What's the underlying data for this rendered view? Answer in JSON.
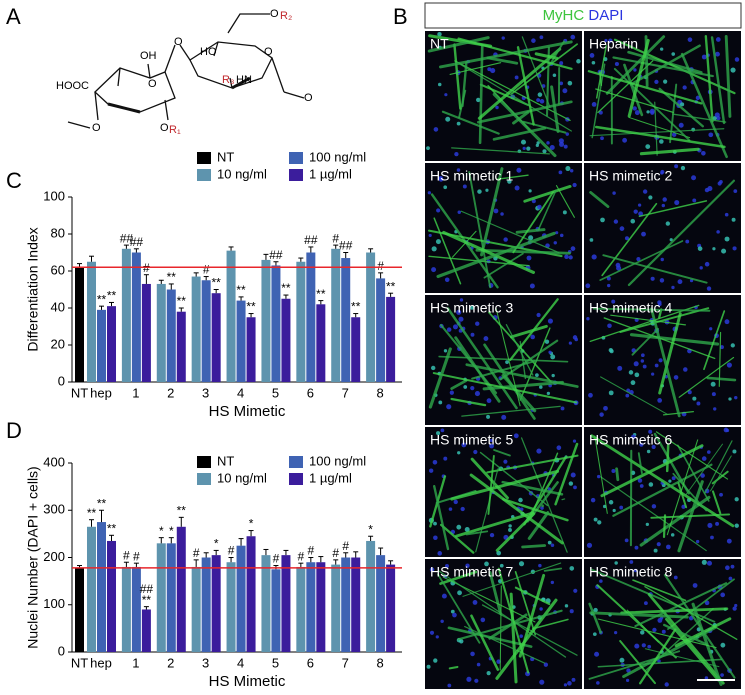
{
  "panel_letters": [
    "A",
    "B",
    "C",
    "D"
  ],
  "structure": {
    "labels": [
      "O",
      "R₂",
      "OH",
      "O",
      "HO",
      "O",
      "HOOC",
      "O",
      "R₃",
      "HN",
      "O",
      "R₁",
      "O",
      "O"
    ]
  },
  "micrographs": {
    "header": {
      "marker": "MyHC",
      "stain": "DAPI"
    },
    "panels": [
      "NT",
      "Heparin",
      "HS mimetic 1",
      "HS mimetic 2",
      "HS mimetic 3",
      "HS mimetic 4",
      "HS mimetic 5",
      "HS mimetic 6",
      "HS mimetic 7",
      "HS mimetic 8"
    ]
  },
  "chart_data": [
    {
      "type": "bar",
      "ylabel": "Differentiation Index",
      "xlabel": "HS Mimetic",
      "categories": [
        "NT",
        "hep",
        "1",
        "2",
        "3",
        "4",
        "5",
        "6",
        "7",
        "8"
      ],
      "ylim": [
        0,
        100
      ],
      "yticks": [
        0,
        20,
        40,
        60,
        80,
        100
      ],
      "reference_line": {
        "value": 62,
        "color": "#e8262b"
      },
      "series": [
        {
          "name": "NT",
          "color": "#000000",
          "values": [
            62,
            null,
            null,
            null,
            null,
            null,
            null,
            null,
            null,
            null
          ],
          "errors": [
            2,
            null,
            null,
            null,
            null,
            null,
            null,
            null,
            null,
            null
          ]
        },
        {
          "name": "10 ng/ml",
          "color": "#5e94ae",
          "values": [
            null,
            65,
            72,
            53,
            57,
            71,
            66,
            65,
            72,
            70
          ],
          "errors": [
            null,
            3,
            2,
            2,
            2,
            2,
            3,
            2,
            2,
            2
          ],
          "annotations": [
            null,
            null,
            "##",
            null,
            null,
            null,
            null,
            null,
            "#",
            null
          ]
        },
        {
          "name": "100 ng/ml",
          "color": "#3f63b3",
          "values": [
            null,
            39,
            70,
            50,
            55,
            44,
            63,
            70,
            67,
            56
          ],
          "errors": [
            null,
            2,
            2,
            3,
            2,
            2,
            2,
            3,
            3,
            3
          ],
          "annotations": [
            null,
            "**",
            "##",
            "**",
            "#",
            "**",
            "##",
            "##",
            "##",
            "#"
          ]
        },
        {
          "name": "1 µg/ml",
          "color": "#3b1d9c",
          "values": [
            null,
            41,
            53,
            38,
            48,
            35,
            45,
            42,
            35,
            46
          ],
          "errors": [
            null,
            2,
            5,
            2,
            2,
            2,
            2,
            2,
            2,
            2
          ],
          "annotations": [
            null,
            "**",
            "#",
            "**",
            "**",
            "**",
            "**",
            "**",
            "**",
            "**"
          ]
        }
      ]
    },
    {
      "type": "bar",
      "ylabel": "Nuclei Number (DAPI + cells)",
      "xlabel": "HS Mimetic",
      "categories": [
        "NT",
        "hep",
        "1",
        "2",
        "3",
        "4",
        "5",
        "6",
        "7",
        "8"
      ],
      "ylim": [
        0,
        400
      ],
      "yticks": [
        0,
        100,
        200,
        300,
        400
      ],
      "reference_line": {
        "value": 178,
        "color": "#e8262b"
      },
      "series": [
        {
          "name": "NT",
          "color": "#000000",
          "values": [
            178,
            null,
            null,
            null,
            null,
            null,
            null,
            null,
            null,
            null
          ],
          "errors": [
            5,
            null,
            null,
            null,
            null,
            null,
            null,
            null,
            null,
            null
          ]
        },
        {
          "name": "10 ng/ml",
          "color": "#5e94ae",
          "values": [
            null,
            265,
            180,
            230,
            180,
            190,
            205,
            180,
            185,
            235
          ],
          "errors": [
            null,
            15,
            10,
            12,
            15,
            10,
            12,
            8,
            10,
            10
          ],
          "annotations": [
            null,
            "**",
            "#",
            "*",
            "#",
            "#",
            null,
            "#",
            "#",
            "*"
          ]
        },
        {
          "name": "100 ng/ml",
          "color": "#3f63b3",
          "values": [
            null,
            275,
            180,
            230,
            200,
            225,
            175,
            190,
            200,
            205
          ],
          "errors": [
            null,
            25,
            8,
            12,
            10,
            15,
            8,
            10,
            10,
            15
          ],
          "annotations": [
            null,
            "**",
            "#",
            "*",
            null,
            null,
            "#",
            "#",
            "#",
            null
          ]
        },
        {
          "name": "1 µg/ml",
          "color": "#3b1d9c",
          "values": [
            null,
            235,
            90,
            265,
            205,
            245,
            205,
            190,
            200,
            185
          ],
          "errors": [
            null,
            12,
            6,
            20,
            10,
            12,
            10,
            12,
            12,
            8
          ],
          "annotations": [
            null,
            "**",
            [
              "##",
              "**"
            ],
            "**",
            "*",
            "*",
            null,
            null,
            null,
            null
          ]
        }
      ]
    }
  ]
}
